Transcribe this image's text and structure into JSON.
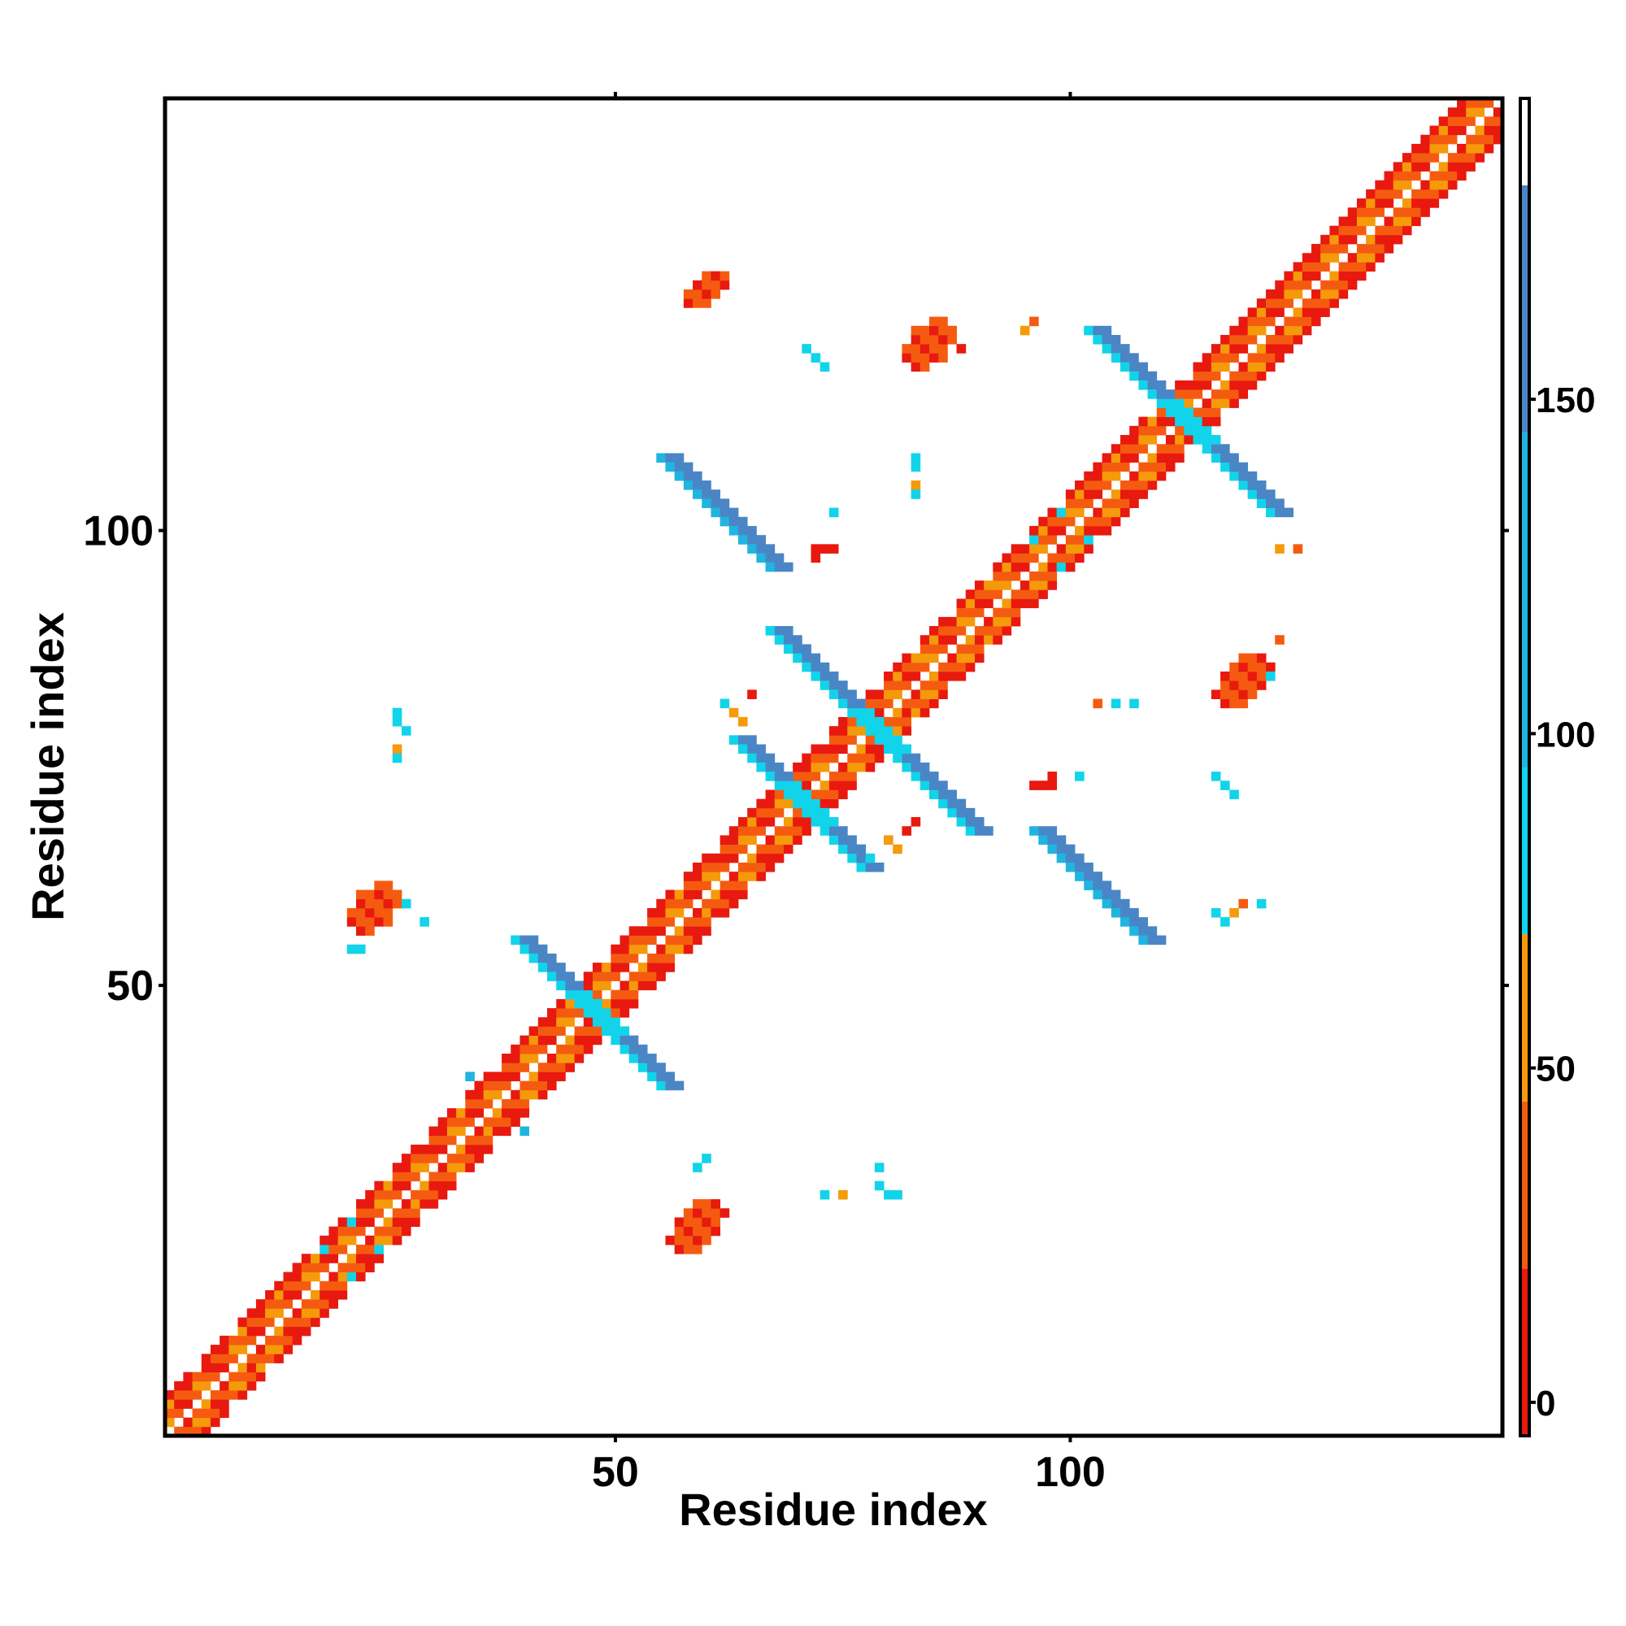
{
  "chart_data": {
    "type": "heatmap",
    "title": "",
    "xlabel": "Residue index",
    "ylabel": "Residue index",
    "xlim": [
      0.5,
      147.5
    ],
    "ylim": [
      0.5,
      147.5
    ],
    "x_ticks": [
      50,
      100
    ],
    "y_ticks": [
      50,
      100
    ],
    "grid": false,
    "legend": "colorbar-right",
    "colorbar": {
      "range": [
        -5,
        195
      ],
      "ticks": [
        0,
        50,
        100,
        150
      ],
      "bands": [
        {
          "from": -5,
          "to": 20,
          "color": "#e8190f"
        },
        {
          "from": 20,
          "to": 45,
          "color": "#f55b10"
        },
        {
          "from": 45,
          "to": 70,
          "color": "#f59a0a"
        },
        {
          "from": 70,
          "to": 95,
          "color": "#11d4ea"
        },
        {
          "from": 95,
          "to": 145,
          "color": "#1fb5e0"
        },
        {
          "from": 145,
          "to": 182,
          "color": "#4a86c6"
        },
        {
          "from": 182,
          "to": 195,
          "color": "#ffffff"
        }
      ]
    },
    "diagonal": {
      "from": 1,
      "to": 147
    },
    "helix_segments": [
      [
        1,
        7
      ],
      [
        9,
        14
      ],
      [
        15,
        20
      ],
      [
        22,
        28
      ],
      [
        30,
        36
      ],
      [
        38,
        44
      ],
      [
        45,
        52
      ],
      [
        54,
        60
      ],
      [
        62,
        67
      ],
      [
        68,
        72
      ],
      [
        74,
        82
      ],
      [
        84,
        90
      ],
      [
        92,
        98
      ],
      [
        100,
        106
      ],
      [
        107,
        112
      ],
      [
        114,
        120
      ],
      [
        121,
        128
      ],
      [
        129,
        134
      ],
      [
        135,
        141
      ],
      [
        142,
        147
      ]
    ],
    "strand_crossings": [
      {
        "center": [
          47,
          47
        ],
        "length": 16,
        "width": 3
      },
      {
        "center": [
          78,
          78
        ],
        "length": 22,
        "width": 3
      },
      {
        "center": [
          112,
          112
        ],
        "length": 20,
        "width": 3
      },
      {
        "center": [
          70,
          70
        ],
        "length": 14,
        "width": 3
      }
    ],
    "off_diagonal_strands": [
      {
        "start": [
          55,
          108
        ],
        "end": [
          67,
          96
        ],
        "width": 3
      },
      {
        "start": [
          96,
          67
        ],
        "end": [
          108,
          55
        ],
        "width": 3
      }
    ],
    "patches": [
      {
        "x": [
          21,
          26
        ],
        "y": [
          56,
          61
        ],
        "value": 35
      },
      {
        "x": [
          56,
          62
        ],
        "y": [
          21,
          26
        ],
        "value": 35
      },
      {
        "x": [
          82,
          87
        ],
        "y": [
          118,
          123
        ],
        "value": 35
      },
      {
        "x": [
          116,
          122
        ],
        "y": [
          81,
          86
        ],
        "value": 35
      },
      {
        "x": [
          58,
          62
        ],
        "y": [
          125,
          128
        ],
        "value": 35
      }
    ],
    "scatter_cells": [
      [
        26,
        80,
        90
      ],
      [
        26,
        79,
        90
      ],
      [
        27,
        78,
        90
      ],
      [
        26,
        76,
        60
      ],
      [
        26,
        75,
        90
      ],
      [
        29,
        57,
        90
      ],
      [
        27,
        59,
        90
      ],
      [
        21,
        54,
        90
      ],
      [
        22,
        54,
        90
      ],
      [
        34,
        40,
        120
      ],
      [
        40,
        34,
        120
      ],
      [
        60,
        31,
        90
      ],
      [
        59,
        30,
        90
      ],
      [
        73,
        27,
        90
      ],
      [
        75,
        27,
        60
      ],
      [
        79,
        28,
        90
      ],
      [
        80,
        27,
        90
      ],
      [
        81,
        27,
        90
      ],
      [
        79,
        30,
        90
      ],
      [
        71,
        120,
        90
      ],
      [
        72,
        119,
        90
      ],
      [
        73,
        118,
        90
      ],
      [
        83,
        108,
        90
      ],
      [
        83,
        107,
        90
      ],
      [
        83,
        105,
        60
      ],
      [
        83,
        104,
        90
      ],
      [
        74,
        102,
        90
      ],
      [
        72,
        98,
        10
      ],
      [
        73,
        98,
        10
      ],
      [
        74,
        98,
        10
      ],
      [
        72,
        97,
        10
      ],
      [
        96,
        123,
        40
      ],
      [
        95,
        122,
        60
      ],
      [
        88,
        120,
        10
      ],
      [
        103,
        81,
        40
      ],
      [
        105,
        81,
        90
      ],
      [
        107,
        81,
        90
      ],
      [
        96,
        72,
        10
      ],
      [
        97,
        72,
        10
      ],
      [
        98,
        72,
        10
      ],
      [
        98,
        73,
        10
      ],
      [
        101,
        73,
        90
      ],
      [
        116,
        73,
        90
      ],
      [
        117,
        72,
        90
      ],
      [
        118,
        71,
        90
      ],
      [
        121,
        59,
        90
      ],
      [
        119,
        59,
        40
      ],
      [
        118,
        58,
        60
      ],
      [
        116,
        58,
        90
      ],
      [
        117,
        57,
        90
      ],
      [
        123,
        98,
        60
      ],
      [
        125,
        98,
        40
      ],
      [
        123,
        88,
        40
      ],
      [
        122,
        84,
        90
      ],
      [
        62,
        81,
        90
      ],
      [
        63,
        80,
        60
      ],
      [
        64,
        79,
        60
      ],
      [
        65,
        82,
        10
      ],
      [
        80,
        66,
        60
      ],
      [
        81,
        65,
        60
      ],
      [
        82,
        67,
        10
      ],
      [
        83,
        68,
        10
      ],
      [
        78,
        64,
        90
      ]
    ]
  }
}
